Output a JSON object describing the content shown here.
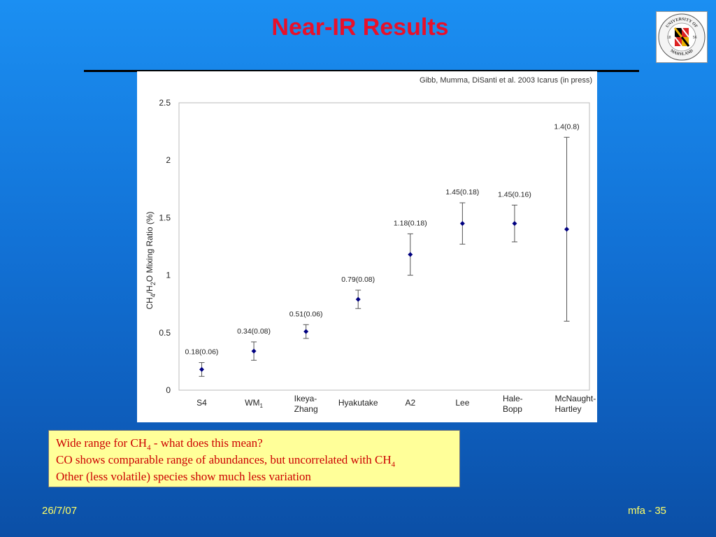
{
  "slide": {
    "title": "Near-IR Results",
    "citation": "Gibb, Mumma, DiSanti et al. 2003 Icarus (in press)",
    "footer_date": "26/7/07",
    "footer_page": "mfa - 35"
  },
  "logo": {
    "text_top": "UNIVERSITY OF",
    "text_bottom": "MARYLAND",
    "year_left": "18",
    "year_right": "56"
  },
  "callout": {
    "line1_pre": "Wide range for CH",
    "line1_sub": "4",
    "line1_post": " - what does this mean?",
    "line2_pre": "CO shows comparable range of abundances, but uncorrelated with CH",
    "line2_sub": "4",
    "line3": "Other (less volatile) species show much less variation"
  },
  "colors": {
    "title": "#e8102a",
    "marker": "#000080",
    "callout_bg": "#ffff99",
    "callout_text": "#cc0000",
    "footer": "#ffff66"
  },
  "chart_data": {
    "type": "scatter",
    "ylabel_parts": [
      "CH",
      "4",
      "/H",
      "2",
      "O Mixing Ratio (%)"
    ],
    "ylim": [
      0,
      2.5
    ],
    "ytick_labels": [
      "0",
      "0.5",
      "1",
      "1.5",
      "2",
      "2.5"
    ],
    "yticks": [
      0,
      0.5,
      1,
      1.5,
      2,
      2.5
    ],
    "grid": false,
    "points": [
      {
        "category": [
          "S4"
        ],
        "sub": "",
        "value": 0.18,
        "error": 0.06,
        "label": "0.18(0.06)"
      },
      {
        "category": [
          "WM"
        ],
        "sub": "1",
        "value": 0.34,
        "error": 0.08,
        "label": "0.34(0.08)"
      },
      {
        "category": [
          "Ikeya-",
          "Zhang"
        ],
        "sub": "",
        "value": 0.51,
        "error": 0.06,
        "label": "0.51(0.06)"
      },
      {
        "category": [
          "Hyakutake"
        ],
        "sub": "",
        "value": 0.79,
        "error": 0.08,
        "label": "0.79(0.08)"
      },
      {
        "category": [
          "A2"
        ],
        "sub": "",
        "value": 1.18,
        "error": 0.18,
        "label": "1.18(0.18)"
      },
      {
        "category": [
          "Lee"
        ],
        "sub": "",
        "value": 1.45,
        "error": 0.18,
        "label": "1.45(0.18)"
      },
      {
        "category": [
          "Hale-",
          "Bopp"
        ],
        "sub": "",
        "value": 1.45,
        "error": 0.16,
        "label": "1.45(0.16)"
      },
      {
        "category": [
          "McNaught-",
          "Hartley"
        ],
        "sub": "",
        "value": 1.4,
        "error": 0.8,
        "label": "1.4(0.8)"
      }
    ]
  }
}
